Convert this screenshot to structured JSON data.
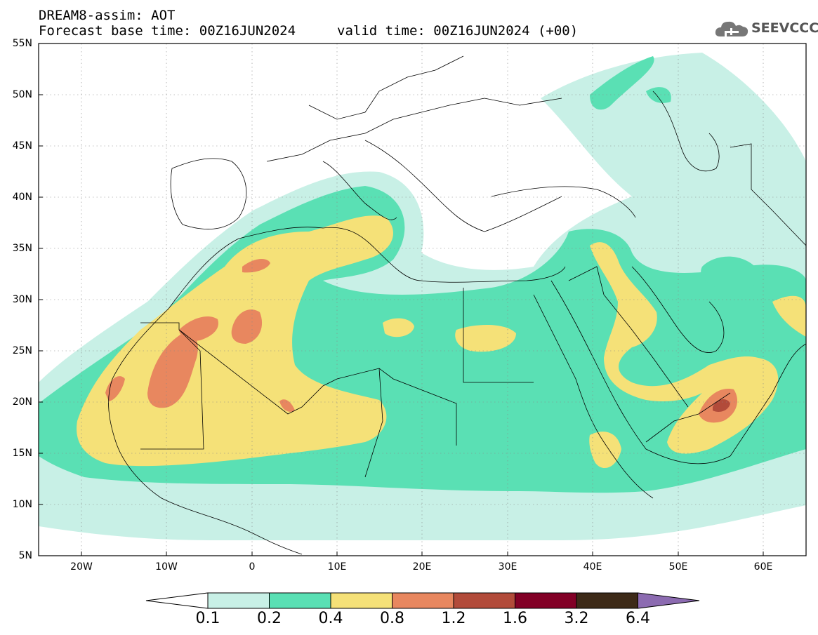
{
  "header": {
    "title": "DREAM8-assim: AOT",
    "base_time": "Forecast base time: 00Z16JUN2024",
    "valid_time": "valid time: 00Z16JUN2024 (+00)"
  },
  "logo": {
    "text": "SEEVCCC",
    "icon": "cloud-icon"
  },
  "map": {
    "lat_labels": [
      "55N",
      "50N",
      "45N",
      "40N",
      "35N",
      "30N",
      "25N",
      "20N",
      "15N",
      "10N",
      "5N"
    ],
    "lon_labels": [
      "20W",
      "10W",
      "0",
      "10E",
      "20E",
      "30E",
      "40E",
      "50E",
      "60E"
    ],
    "lon_range": [
      -25,
      65
    ],
    "lat_range": [
      5,
      55
    ],
    "grid": "dotted"
  },
  "legend": {
    "labels": [
      "0.1",
      "0.2",
      "0.4",
      "0.8",
      "1.2",
      "1.6",
      "3.2",
      "6.4"
    ],
    "colors": [
      "#ffffff",
      "#c8f0e6",
      "#5ae0b4",
      "#f5e178",
      "#e8875f",
      "#b24b3a",
      "#820026",
      "#3d2a18",
      "#8c6bb1"
    ]
  }
}
